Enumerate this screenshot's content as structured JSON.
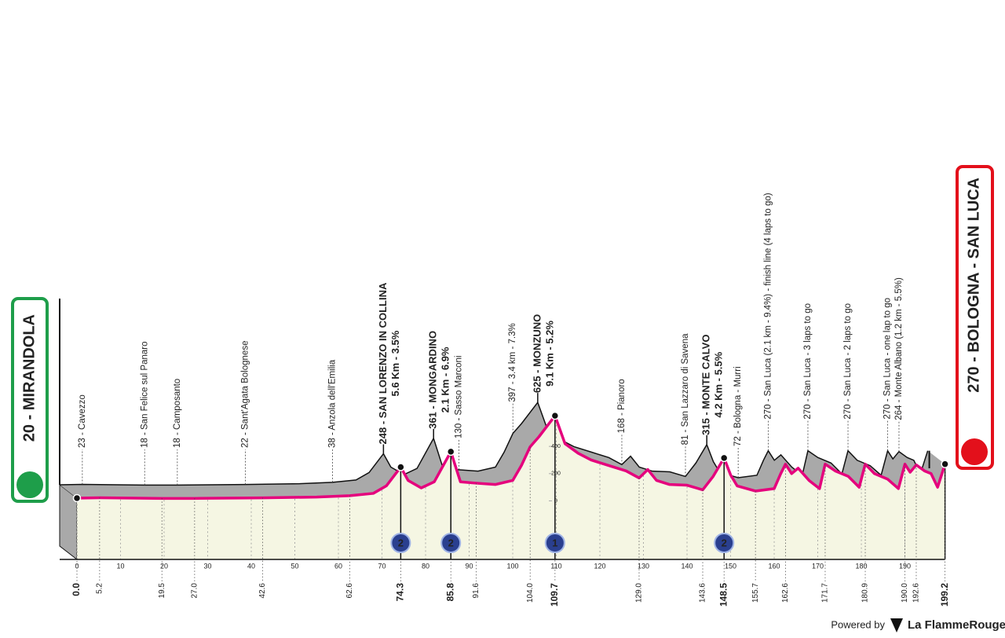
{
  "chart_data": {
    "type": "area",
    "start": "20 - MIRANDOLA",
    "finish": "270 - BOLOGNA - SAN LUCA",
    "x": [
      0,
      5.2,
      19.5,
      27.0,
      42.6,
      55,
      62.6,
      68,
      71,
      74.3,
      76,
      79,
      82,
      85.8,
      88,
      91.6,
      96,
      100,
      102,
      104,
      106,
      109.7,
      112,
      115,
      118,
      122,
      126,
      129,
      131,
      133,
      136,
      140,
      143.6,
      146,
      148.5,
      150,
      151.5,
      155.7,
      160,
      161.5,
      162.6,
      164,
      165.5,
      168,
      170.4,
      171.7,
      174,
      177,
      179.5,
      180.9,
      183,
      186,
      188.5,
      190,
      191.2,
      192.6,
      194.5,
      196,
      197.5,
      199.2
    ],
    "values": [
      20,
      23,
      18,
      18,
      22,
      28,
      38,
      55,
      110,
      248,
      150,
      95,
      140,
      361,
      140,
      130,
      120,
      150,
      260,
      397,
      470,
      625,
      420,
      350,
      300,
      260,
      220,
      168,
      230,
      150,
      120,
      115,
      81,
      180,
      315,
      190,
      110,
      72,
      90,
      200,
      270,
      200,
      240,
      150,
      90,
      270,
      220,
      180,
      100,
      270,
      200,
      160,
      90,
      270,
      210,
      264,
      220,
      200,
      100,
      270
    ],
    "color": "#e5007d",
    "back_color": "#a9a9a9",
    "face_color": "#f5f6e3",
    "xlim": [
      0,
      199.2
    ],
    "ylim": [
      -430,
      800
    ],
    "xticks": [
      0,
      10,
      20,
      30,
      40,
      50,
      60,
      70,
      80,
      90,
      100,
      110,
      120,
      130,
      140,
      150,
      160,
      170,
      180,
      190
    ],
    "yticks": [
      0,
      200,
      400
    ],
    "km_marks": [
      {
        "value": 0,
        "label": "0.0",
        "bold": true
      },
      {
        "value": 5.2,
        "label": "5.2"
      },
      {
        "value": 19.5,
        "label": "19.5"
      },
      {
        "value": 27,
        "label": "27.0"
      },
      {
        "value": 42.6,
        "label": "42.6"
      },
      {
        "value": 62.6,
        "label": "62.6"
      },
      {
        "value": 74.3,
        "label": "74.3",
        "bold": true
      },
      {
        "value": 85.8,
        "label": "85.8",
        "bold": true
      },
      {
        "value": 91.6,
        "label": "91.6"
      },
      {
        "value": 104,
        "label": "104.0"
      },
      {
        "value": 109.7,
        "label": "109.7",
        "bold": true
      },
      {
        "value": 129,
        "label": "129.0"
      },
      {
        "value": 143.6,
        "label": "143.6"
      },
      {
        "value": 148.5,
        "label": "148.5",
        "bold": true
      },
      {
        "value": 155.7,
        "label": "155.7"
      },
      {
        "value": 162.6,
        "label": "162.6"
      },
      {
        "value": 171.7,
        "label": "171.7"
      },
      {
        "value": 180.9,
        "label": "180.9"
      },
      {
        "value": 190,
        "label": "190.0"
      },
      {
        "value": 192.6,
        "label": "192.6"
      },
      {
        "value": 199.2,
        "label": "199.2",
        "bold": true
      }
    ],
    "locations": [
      {
        "km": 5.2,
        "label": "23 - Cavezzo"
      },
      {
        "km": 19.5,
        "label": "18 - San Felice sul Panaro"
      },
      {
        "km": 27,
        "label": "18 - Camposanto"
      },
      {
        "km": 42.6,
        "label": "22 - Sant'Agata Bolognese"
      },
      {
        "km": 62.6,
        "label": "38 - Anzola dell'Emilia"
      },
      {
        "km": 91.6,
        "label": "130 - Sasso Marconi"
      },
      {
        "km": 104,
        "label": "397 - 3.4 km - 7.3%"
      },
      {
        "km": 129,
        "label": "168 - Pianoro"
      },
      {
        "km": 143.6,
        "label": "81 - San Lazzaro di Savena"
      },
      {
        "km": 155.7,
        "label": "72 - Bologna - Murri"
      },
      {
        "km": 162.6,
        "label": "270 - San Luca (2.1 km - 9.4%) - finish line (4 laps to go)"
      },
      {
        "km": 171.7,
        "label": "270 - San Luca - 3 laps to go"
      },
      {
        "km": 180.9,
        "label": "270 - San Luca - 2 laps to go"
      },
      {
        "km": 190,
        "label": "270 - San Luca - one lap to go"
      },
      {
        "km": 192.6,
        "label": "264 - Monte Albano (1.2 km - 5.5%)"
      }
    ],
    "climbs": [
      {
        "km": 74.3,
        "name": "248 - SAN LORENZO IN COLLINA",
        "detail": "5.6 Km - 3.5%",
        "category": 2
      },
      {
        "km": 85.8,
        "name": "361 - MONGARDINO",
        "detail": "2.1 Km - 6.9%",
        "category": 2
      },
      {
        "km": 109.7,
        "name": "625 - MONZUNO",
        "detail": "9.1 Km - 5.2%",
        "category": 1
      },
      {
        "km": 148.5,
        "name": "315 - MONTE CALVO",
        "detail": "4.2 Km - 5.5%",
        "category": 2
      }
    ]
  },
  "footer": {
    "powered": "Powered by",
    "brand": "La FlammeRouge"
  }
}
